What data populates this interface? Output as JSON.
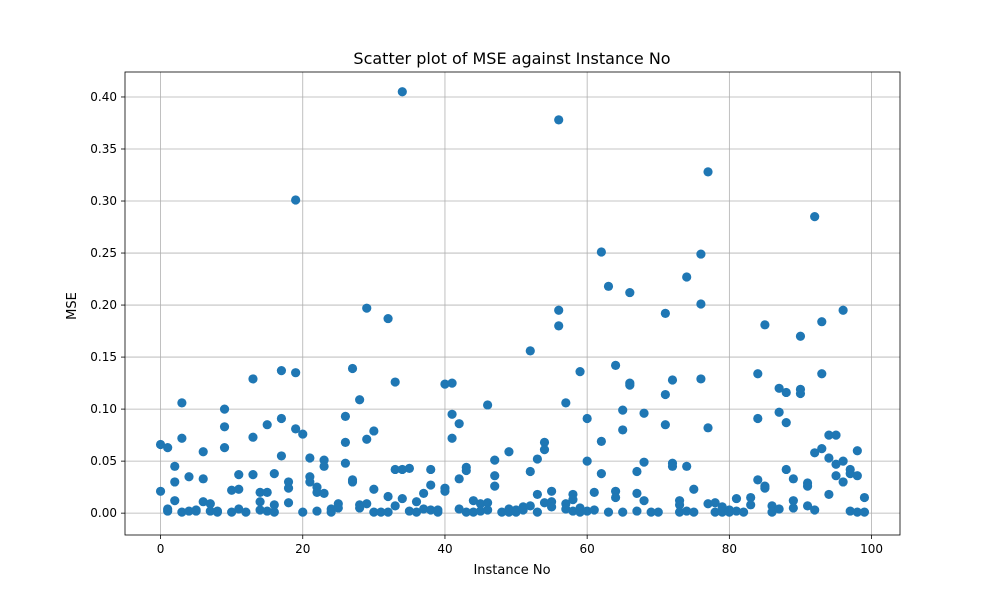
{
  "chart_data": {
    "type": "scatter",
    "title": "Scatter plot of MSE against Instance No",
    "xlabel": "Instance No",
    "ylabel": "MSE",
    "xlim": [
      -5,
      104
    ],
    "ylim": [
      -0.021,
      0.424
    ],
    "xticks": [
      0,
      20,
      40,
      60,
      80,
      100
    ],
    "yticks": [
      0.0,
      0.05,
      0.1,
      0.15,
      0.2,
      0.25,
      0.3,
      0.35,
      0.4
    ],
    "xtick_labels": [
      "0",
      "20",
      "40",
      "60",
      "80",
      "100"
    ],
    "ytick_labels": [
      "0.00",
      "0.05",
      "0.10",
      "0.15",
      "0.20",
      "0.25",
      "0.30",
      "0.35",
      "0.40"
    ],
    "grid": true,
    "color": "#1f77b4",
    "series": [
      {
        "points": [
          [
            0,
            0.066
          ],
          [
            0,
            0.021
          ],
          [
            1,
            0.063
          ],
          [
            1,
            0.004
          ],
          [
            1,
            0.002
          ],
          [
            2,
            0.045
          ],
          [
            2,
            0.03
          ],
          [
            2,
            0.012
          ],
          [
            3,
            0.106
          ],
          [
            3,
            0.072
          ],
          [
            3,
            0.001
          ],
          [
            4,
            0.035
          ],
          [
            4,
            0.002
          ],
          [
            5,
            0.003
          ],
          [
            5,
            0.002
          ],
          [
            6,
            0.059
          ],
          [
            6,
            0.033
          ],
          [
            6,
            0.011
          ],
          [
            7,
            0.009
          ],
          [
            7,
            0.002
          ],
          [
            8,
            0.002
          ],
          [
            8,
            0.001
          ],
          [
            9,
            0.1
          ],
          [
            9,
            0.083
          ],
          [
            9,
            0.063
          ],
          [
            10,
            0.022
          ],
          [
            10,
            0.001
          ],
          [
            11,
            0.037
          ],
          [
            11,
            0.023
          ],
          [
            11,
            0.004
          ],
          [
            12,
            0.001
          ],
          [
            13,
            0.129
          ],
          [
            13,
            0.073
          ],
          [
            13,
            0.037
          ],
          [
            14,
            0.02
          ],
          [
            14,
            0.011
          ],
          [
            14,
            0.003
          ],
          [
            15,
            0.085
          ],
          [
            15,
            0.02
          ],
          [
            15,
            0.002
          ],
          [
            16,
            0.038
          ],
          [
            16,
            0.008
          ],
          [
            16,
            0.001
          ],
          [
            17,
            0.137
          ],
          [
            17,
            0.091
          ],
          [
            17,
            0.055
          ],
          [
            18,
            0.03
          ],
          [
            18,
            0.024
          ],
          [
            18,
            0.01
          ],
          [
            19,
            0.301
          ],
          [
            19,
            0.135
          ],
          [
            19,
            0.081
          ],
          [
            20,
            0.076
          ],
          [
            20,
            0.001
          ],
          [
            21,
            0.053
          ],
          [
            21,
            0.035
          ],
          [
            21,
            0.03
          ],
          [
            22,
            0.025
          ],
          [
            22,
            0.02
          ],
          [
            22,
            0.002
          ],
          [
            23,
            0.051
          ],
          [
            23,
            0.045
          ],
          [
            23,
            0.019
          ],
          [
            24,
            0.004
          ],
          [
            24,
            0.001
          ],
          [
            25,
            0.009
          ],
          [
            25,
            0.005
          ],
          [
            26,
            0.093
          ],
          [
            26,
            0.068
          ],
          [
            26,
            0.048
          ],
          [
            27,
            0.139
          ],
          [
            27,
            0.032
          ],
          [
            27,
            0.03
          ],
          [
            28,
            0.109
          ],
          [
            28,
            0.008
          ],
          [
            28,
            0.005
          ],
          [
            29,
            0.197
          ],
          [
            29,
            0.071
          ],
          [
            29,
            0.009
          ],
          [
            30,
            0.079
          ],
          [
            30,
            0.023
          ],
          [
            30,
            0.001
          ],
          [
            31,
            0.001
          ],
          [
            32,
            0.187
          ],
          [
            32,
            0.016
          ],
          [
            32,
            0.001
          ],
          [
            33,
            0.126
          ],
          [
            33,
            0.042
          ],
          [
            33,
            0.007
          ],
          [
            34,
            0.405
          ],
          [
            34,
            0.042
          ],
          [
            34,
            0.014
          ],
          [
            35,
            0.043
          ],
          [
            35,
            0.002
          ],
          [
            36,
            0.011
          ],
          [
            36,
            0.001
          ],
          [
            37,
            0.019
          ],
          [
            37,
            0.004
          ],
          [
            38,
            0.042
          ],
          [
            38,
            0.027
          ],
          [
            38,
            0.003
          ],
          [
            39,
            0.003
          ],
          [
            39,
            0.001
          ],
          [
            40,
            0.124
          ],
          [
            40,
            0.024
          ],
          [
            40,
            0.021
          ],
          [
            41,
            0.125
          ],
          [
            41,
            0.095
          ],
          [
            41,
            0.072
          ],
          [
            42,
            0.086
          ],
          [
            42,
            0.033
          ],
          [
            42,
            0.004
          ],
          [
            43,
            0.044
          ],
          [
            43,
            0.041
          ],
          [
            43,
            0.001
          ],
          [
            44,
            0.012
          ],
          [
            44,
            0.001
          ],
          [
            45,
            0.009
          ],
          [
            45,
            0.002
          ],
          [
            46,
            0.104
          ],
          [
            46,
            0.01
          ],
          [
            46,
            0.003
          ],
          [
            47,
            0.051
          ],
          [
            47,
            0.036
          ],
          [
            47,
            0.026
          ],
          [
            48,
            0.001
          ],
          [
            49,
            0.059
          ],
          [
            49,
            0.004
          ],
          [
            49,
            0.001
          ],
          [
            50,
            0.003
          ],
          [
            50,
            0.001
          ],
          [
            51,
            0.006
          ],
          [
            51,
            0.003
          ],
          [
            52,
            0.156
          ],
          [
            52,
            0.04
          ],
          [
            52,
            0.007
          ],
          [
            53,
            0.052
          ],
          [
            53,
            0.018
          ],
          [
            53,
            0.001
          ],
          [
            54,
            0.068
          ],
          [
            54,
            0.061
          ],
          [
            54,
            0.01
          ],
          [
            55,
            0.021
          ],
          [
            55,
            0.011
          ],
          [
            55,
            0.006
          ],
          [
            56,
            0.378
          ],
          [
            56,
            0.195
          ],
          [
            56,
            0.18
          ],
          [
            57,
            0.106
          ],
          [
            57,
            0.009
          ],
          [
            57,
            0.004
          ],
          [
            58,
            0.018
          ],
          [
            58,
            0.013
          ],
          [
            58,
            0.002
          ],
          [
            59,
            0.136
          ],
          [
            59,
            0.005
          ],
          [
            59,
            0.001
          ],
          [
            60,
            0.091
          ],
          [
            60,
            0.05
          ],
          [
            60,
            0.002
          ],
          [
            61,
            0.02
          ],
          [
            61,
            0.003
          ],
          [
            62,
            0.251
          ],
          [
            62,
            0.069
          ],
          [
            62,
            0.038
          ],
          [
            63,
            0.218
          ],
          [
            63,
            0.001
          ],
          [
            64,
            0.142
          ],
          [
            64,
            0.021
          ],
          [
            64,
            0.015
          ],
          [
            65,
            0.099
          ],
          [
            65,
            0.08
          ],
          [
            65,
            0.001
          ],
          [
            66,
            0.212
          ],
          [
            66,
            0.125
          ],
          [
            66,
            0.123
          ],
          [
            67,
            0.04
          ],
          [
            67,
            0.019
          ],
          [
            67,
            0.002
          ],
          [
            68,
            0.096
          ],
          [
            68,
            0.049
          ],
          [
            68,
            0.012
          ],
          [
            69,
            0.001
          ],
          [
            70,
            0.001
          ],
          [
            71,
            0.192
          ],
          [
            71,
            0.114
          ],
          [
            71,
            0.085
          ],
          [
            72,
            0.128
          ],
          [
            72,
            0.048
          ],
          [
            72,
            0.045
          ],
          [
            73,
            0.012
          ],
          [
            73,
            0.008
          ],
          [
            73,
            0.001
          ],
          [
            74,
            0.227
          ],
          [
            74,
            0.045
          ],
          [
            74,
            0.002
          ],
          [
            75,
            0.023
          ],
          [
            75,
            0.001
          ],
          [
            76,
            0.249
          ],
          [
            76,
            0.201
          ],
          [
            76,
            0.129
          ],
          [
            77,
            0.328
          ],
          [
            77,
            0.082
          ],
          [
            77,
            0.009
          ],
          [
            78,
            0.01
          ],
          [
            78,
            0.001
          ],
          [
            79,
            0.006
          ],
          [
            79,
            0.001
          ],
          [
            80,
            0.003
          ],
          [
            80,
            0.001
          ],
          [
            81,
            0.014
          ],
          [
            81,
            0.002
          ],
          [
            82,
            0.001
          ],
          [
            83,
            0.015
          ],
          [
            83,
            0.008
          ],
          [
            84,
            0.134
          ],
          [
            84,
            0.091
          ],
          [
            84,
            0.032
          ],
          [
            85,
            0.181
          ],
          [
            85,
            0.026
          ],
          [
            85,
            0.024
          ],
          [
            86,
            0.007
          ],
          [
            86,
            0.001
          ],
          [
            87,
            0.12
          ],
          [
            87,
            0.097
          ],
          [
            87,
            0.004
          ],
          [
            88,
            0.116
          ],
          [
            88,
            0.087
          ],
          [
            88,
            0.042
          ],
          [
            89,
            0.033
          ],
          [
            89,
            0.012
          ],
          [
            89,
            0.005
          ],
          [
            90,
            0.17
          ],
          [
            90,
            0.119
          ],
          [
            90,
            0.115
          ],
          [
            91,
            0.029
          ],
          [
            91,
            0.026
          ],
          [
            91,
            0.007
          ],
          [
            92,
            0.285
          ],
          [
            92,
            0.058
          ],
          [
            92,
            0.003
          ],
          [
            93,
            0.184
          ],
          [
            93,
            0.134
          ],
          [
            93,
            0.062
          ],
          [
            94,
            0.075
          ],
          [
            94,
            0.053
          ],
          [
            94,
            0.018
          ],
          [
            95,
            0.075
          ],
          [
            95,
            0.047
          ],
          [
            95,
            0.036
          ],
          [
            96,
            0.195
          ],
          [
            96,
            0.05
          ],
          [
            96,
            0.03
          ],
          [
            97,
            0.042
          ],
          [
            97,
            0.038
          ],
          [
            97,
            0.002
          ],
          [
            98,
            0.06
          ],
          [
            98,
            0.036
          ],
          [
            98,
            0.001
          ],
          [
            99,
            0.015
          ],
          [
            99,
            0.001
          ]
        ]
      }
    ]
  }
}
